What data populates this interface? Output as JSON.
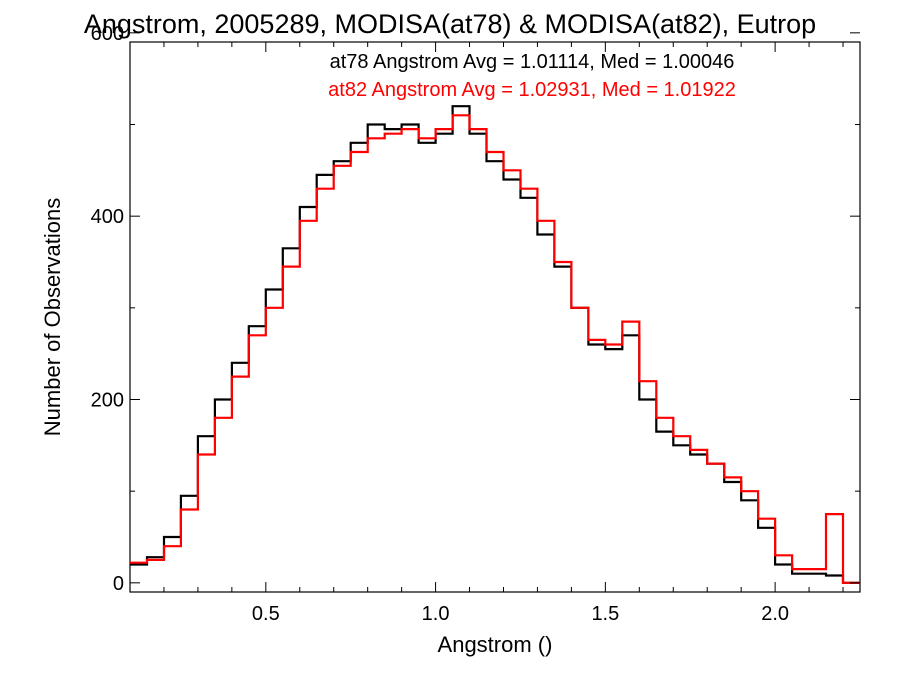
{
  "chart_data": {
    "type": "line",
    "title": "Angstrom, 2005289, MODISA(at78) & MODISA(at82), Eutrop",
    "xlabel": "Angstrom ()",
    "ylabel": "Number of Observations",
    "xlim": [
      0.1,
      2.25
    ],
    "ylim": [
      -10,
      590
    ],
    "x_ticks": [
      0.5,
      1.0,
      1.5,
      2.0
    ],
    "x_tick_labels": [
      "0.5",
      "1.0",
      "1.5",
      "2.0"
    ],
    "y_ticks": [
      0,
      200,
      400,
      600
    ],
    "y_tick_labels": [
      "0",
      "200",
      "400",
      "600"
    ],
    "grid": false,
    "step": true,
    "annotations": [
      {
        "text": "at78 Angstrom Avg = 1.01114, Med = 1.00046",
        "color": "#000000"
      },
      {
        "text": "at82 Angstrom Avg = 1.02931, Med = 1.01922",
        "color": "#ff0000"
      }
    ],
    "series": [
      {
        "color": "#000000",
        "x": [
          0.1,
          0.15,
          0.2,
          0.25,
          0.3,
          0.35,
          0.4,
          0.45,
          0.5,
          0.55,
          0.6,
          0.65,
          0.7,
          0.75,
          0.8,
          0.85,
          0.9,
          0.95,
          1.0,
          1.05,
          1.1,
          1.15,
          1.2,
          1.25,
          1.3,
          1.35,
          1.4,
          1.45,
          1.5,
          1.55,
          1.6,
          1.65,
          1.7,
          1.75,
          1.8,
          1.85,
          1.9,
          1.95,
          2.0,
          2.05,
          2.1,
          2.15,
          2.2,
          2.25
        ],
        "values": [
          20,
          28,
          50,
          95,
          160,
          200,
          240,
          280,
          320,
          365,
          410,
          445,
          460,
          480,
          500,
          495,
          500,
          480,
          490,
          520,
          490,
          460,
          440,
          420,
          380,
          345,
          300,
          260,
          255,
          270,
          200,
          165,
          150,
          140,
          130,
          110,
          90,
          60,
          20,
          10,
          10,
          8,
          0,
          0
        ]
      },
      {
        "color": "#ff0000",
        "x": [
          0.1,
          0.15,
          0.2,
          0.25,
          0.3,
          0.35,
          0.4,
          0.45,
          0.5,
          0.55,
          0.6,
          0.65,
          0.7,
          0.75,
          0.8,
          0.85,
          0.9,
          0.95,
          1.0,
          1.05,
          1.1,
          1.15,
          1.2,
          1.25,
          1.3,
          1.35,
          1.4,
          1.45,
          1.5,
          1.55,
          1.6,
          1.65,
          1.7,
          1.75,
          1.8,
          1.85,
          1.9,
          1.95,
          2.0,
          2.05,
          2.1,
          2.15,
          2.2,
          2.25
        ],
        "values": [
          22,
          25,
          40,
          80,
          140,
          180,
          225,
          270,
          300,
          345,
          395,
          430,
          455,
          470,
          485,
          490,
          495,
          485,
          495,
          510,
          495,
          470,
          450,
          430,
          395,
          350,
          300,
          265,
          260,
          285,
          220,
          180,
          160,
          145,
          130,
          115,
          100,
          70,
          30,
          15,
          15,
          75,
          0,
          0
        ]
      }
    ]
  }
}
